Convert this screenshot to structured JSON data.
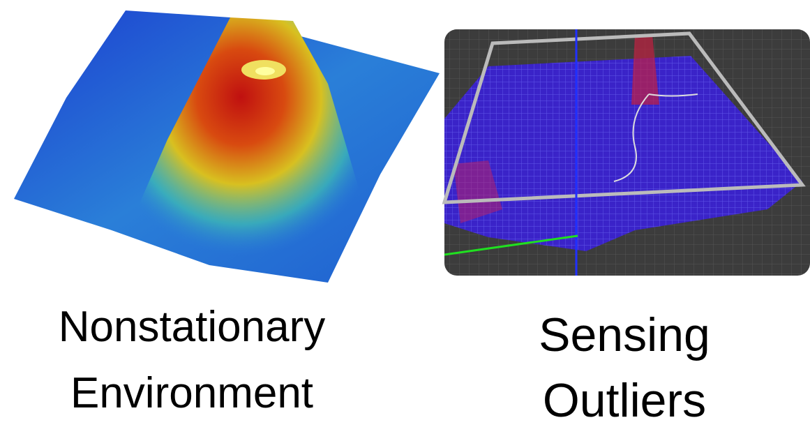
{
  "panels": [
    {
      "caption": [
        "Nonstationary",
        "Environment"
      ]
    },
    {
      "caption": [
        "Sensing",
        "Outliers"
      ]
    }
  ]
}
